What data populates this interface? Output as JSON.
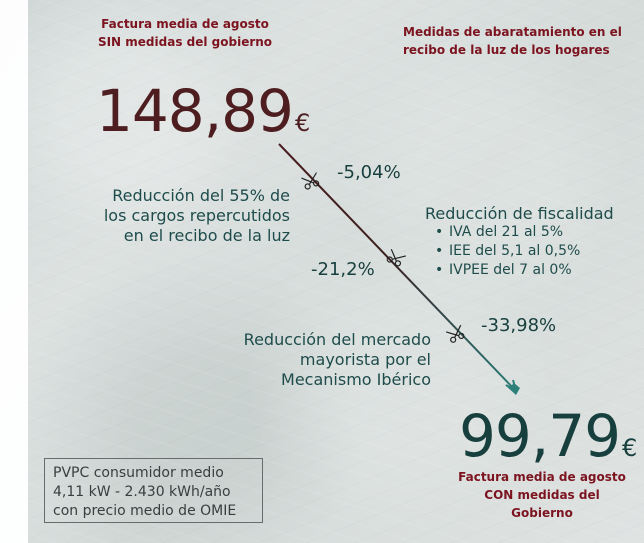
{
  "header": {
    "left_title": "Factura media de agosto\nSIN\nmedidas del gobierno",
    "right_title": "Medidas de abaratamiento en el\nrecibo de la luz de los hogares"
  },
  "values": {
    "before_number": "148,89",
    "before_currency": "€",
    "after_number": "99,79",
    "after_currency": "€"
  },
  "reductions": {
    "cargos_text": "Reducción del 55% de\nlos cargos repercutidos\nen el recibo de la luz",
    "cargos_pct": "-5,04%",
    "fiscalidad_title": "Reducción de fiscalidad",
    "fiscalidad_items": [
      "IVA del 21 al 5%",
      "IEE del 5,1 al 0,5%",
      "IVPEE del 7 al 0%"
    ],
    "fiscalidad_pct": "-21,2%",
    "mercado_text": "Reducción del mercado\nmayorista por el\nMecanismo Ibérico",
    "mercado_pct": "-33,98%"
  },
  "footer": {
    "bottom_right_title": "Factura media de agosto\nCON\nmedidas del Gobierno",
    "info_box": "PVPC consumidor medio\n4,11 kW - 2.430 kWh/año\ncon precio medio de OMIE"
  },
  "colors": {
    "background": "#d6dcdb",
    "title_red": "#7c1420",
    "text_green": "#1e4c4b",
    "top_value": "#4d1d1f",
    "bottom_value": "#173f3d",
    "arrow_start": "#4a1c21",
    "arrow_end": "#2c8079"
  },
  "icons": {
    "scissors": "scissors-icon",
    "arrow": "downward-arrow-icon"
  }
}
